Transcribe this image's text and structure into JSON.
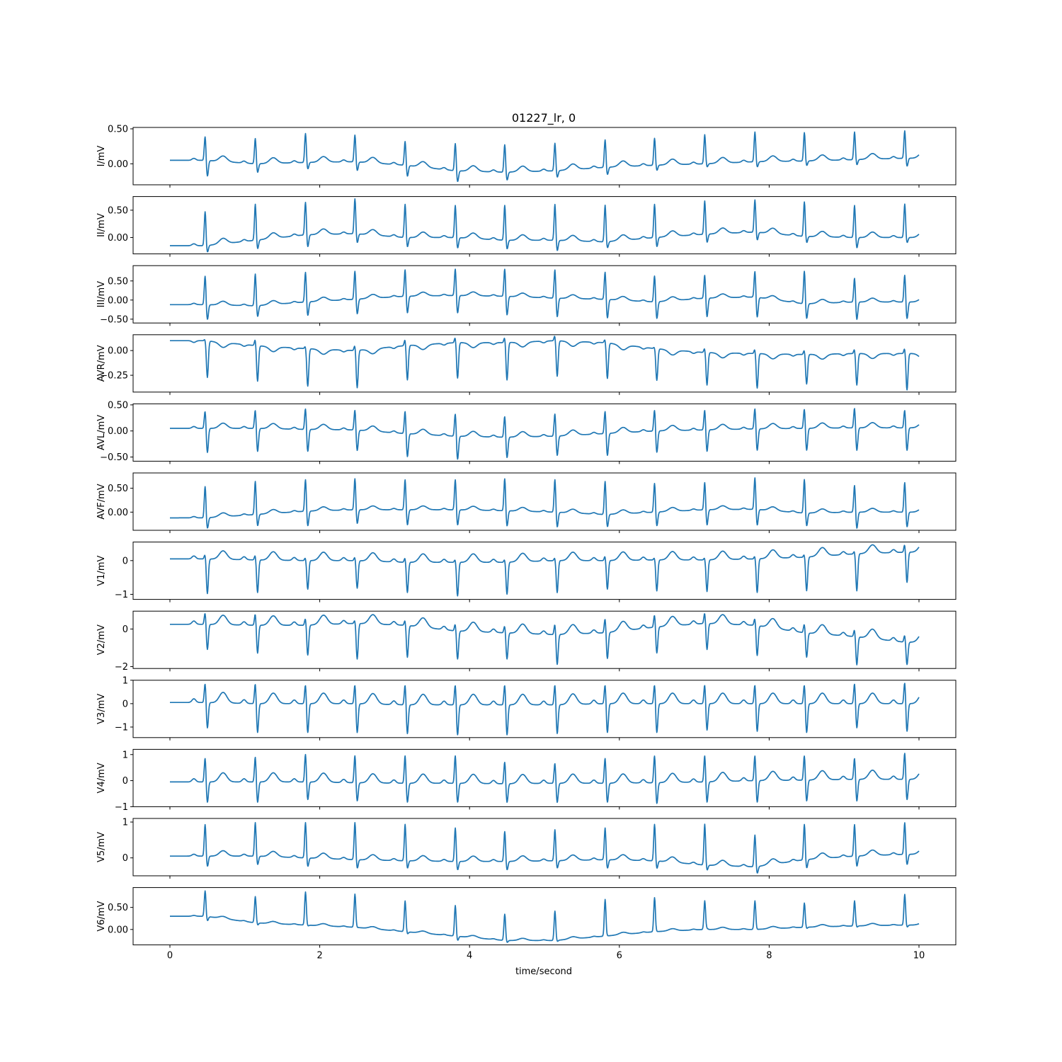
{
  "chart_data": {
    "type": "line",
    "title": "01227_lr,  0",
    "xlabel": "time/second",
    "xlim": [
      0,
      10
    ],
    "xticks": [
      0,
      2,
      4,
      6,
      8,
      10
    ],
    "grid": false,
    "line_color": "#1f77b4",
    "beats": [
      0.47,
      1.14,
      1.81,
      2.47,
      3.14,
      3.81,
      4.47,
      5.14,
      5.81,
      6.47,
      7.14,
      7.81,
      8.47,
      9.14,
      9.81
    ],
    "leads": [
      {
        "name": "I",
        "ylabel": "I/mV",
        "ylim": [
          -0.3,
          0.52
        ],
        "yticks": [
          0.5,
          0.0
        ],
        "baseline": [
          0.05,
          0.0,
          0.02,
          0.03,
          -0.02,
          -0.1,
          -0.12,
          -0.1,
          -0.05,
          -0.02,
          0.0,
          0.03,
          0.04,
          0.06,
          0.08
        ],
        "r": [
          0.4,
          0.37,
          0.44,
          0.42,
          0.33,
          0.3,
          0.28,
          0.3,
          0.35,
          0.37,
          0.42,
          0.46,
          0.45,
          0.46,
          0.48
        ],
        "s": [
          -0.18,
          -0.13,
          -0.08,
          -0.1,
          -0.18,
          -0.26,
          -0.24,
          -0.2,
          -0.16,
          -0.1,
          -0.05,
          -0.05,
          -0.03,
          -0.02,
          -0.04
        ],
        "t": 0.08
      },
      {
        "name": "II",
        "ylabel": "II/mV",
        "ylim": [
          -0.3,
          0.75
        ],
        "yticks": [
          0.5,
          0.0
        ],
        "baseline": [
          -0.15,
          -0.05,
          0.05,
          0.07,
          0.0,
          0.0,
          -0.05,
          -0.05,
          -0.08,
          0.0,
          0.06,
          0.1,
          0.02,
          0.0,
          0.0
        ],
        "r": [
          0.48,
          0.62,
          0.66,
          0.72,
          0.62,
          0.6,
          0.6,
          0.62,
          0.6,
          0.62,
          0.68,
          0.7,
          0.66,
          0.6,
          0.62
        ],
        "s": [
          -0.28,
          -0.22,
          -0.18,
          -0.1,
          -0.18,
          -0.2,
          -0.22,
          -0.25,
          -0.2,
          -0.18,
          -0.1,
          -0.05,
          -0.1,
          -0.2,
          -0.1
        ],
        "t": 0.1
      },
      {
        "name": "III",
        "ylabel": "III/mV",
        "ylim": [
          -0.6,
          0.9
        ],
        "yticks": [
          0.5,
          0.0,
          -0.5
        ],
        "baseline": [
          -0.12,
          -0.15,
          -0.05,
          0.02,
          0.1,
          0.12,
          0.1,
          0.05,
          0.02,
          -0.05,
          0.05,
          0.08,
          -0.1,
          -0.05,
          -0.05
        ],
        "r": [
          0.65,
          0.7,
          0.75,
          0.78,
          0.82,
          0.84,
          0.84,
          0.82,
          0.76,
          0.66,
          0.68,
          0.78,
          0.78,
          0.6,
          0.68
        ],
        "s": [
          -0.52,
          -0.45,
          -0.42,
          -0.38,
          -0.35,
          -0.35,
          -0.4,
          -0.45,
          -0.48,
          -0.5,
          -0.45,
          -0.45,
          -0.5,
          -0.52,
          -0.5
        ],
        "t": 0.1
      },
      {
        "name": "AVR",
        "ylabel": "AVR/mV",
        "ylim": [
          -0.42,
          0.16
        ],
        "yticks": [
          0.0,
          -0.25
        ],
        "baseline": [
          0.1,
          0.05,
          0.02,
          0.0,
          0.05,
          0.08,
          0.08,
          0.1,
          0.08,
          0.02,
          -0.02,
          -0.03,
          -0.04,
          -0.03,
          -0.03
        ],
        "r": [
          0.12,
          0.12,
          0.05,
          0.06,
          0.12,
          0.14,
          0.14,
          0.16,
          0.12,
          0.04,
          0.03,
          0.02,
          0.01,
          0.02,
          0.03
        ],
        "s": [
          -0.27,
          -0.31,
          -0.36,
          -0.38,
          -0.3,
          -0.28,
          -0.3,
          -0.26,
          -0.28,
          -0.3,
          -0.35,
          -0.38,
          -0.34,
          -0.35,
          -0.4
        ],
        "t": -0.05
      },
      {
        "name": "AVL",
        "ylabel": "AVL/mV",
        "ylim": [
          -0.58,
          0.52
        ],
        "yticks": [
          0.5,
          0.0,
          -0.5
        ],
        "baseline": [
          0.05,
          0.05,
          0.03,
          0.02,
          -0.05,
          -0.1,
          -0.12,
          -0.1,
          -0.05,
          0.0,
          0.02,
          0.04,
          0.05,
          0.06,
          0.06
        ],
        "r": [
          0.4,
          0.42,
          0.45,
          0.42,
          0.4,
          0.35,
          0.3,
          0.35,
          0.4,
          0.42,
          0.42,
          0.45,
          0.44,
          0.46,
          0.42
        ],
        "s": [
          -0.42,
          -0.4,
          -0.4,
          -0.38,
          -0.5,
          -0.55,
          -0.52,
          -0.48,
          -0.48,
          -0.42,
          -0.4,
          -0.38,
          -0.38,
          -0.38,
          -0.38
        ],
        "t": 0.1
      },
      {
        "name": "AVF",
        "ylabel": "AVF/mV",
        "ylim": [
          -0.38,
          0.82
        ],
        "yticks": [
          0.5,
          0.0
        ],
        "baseline": [
          -0.12,
          -0.05,
          0.02,
          0.05,
          0.05,
          0.05,
          0.03,
          0.0,
          -0.05,
          0.0,
          0.05,
          0.06,
          -0.02,
          0.0,
          0.0
        ],
        "r": [
          0.55,
          0.66,
          0.7,
          0.72,
          0.7,
          0.7,
          0.72,
          0.7,
          0.66,
          0.62,
          0.64,
          0.74,
          0.7,
          0.58,
          0.64
        ],
        "s": [
          -0.35,
          -0.3,
          -0.3,
          -0.25,
          -0.28,
          -0.28,
          -0.3,
          -0.32,
          -0.32,
          -0.3,
          -0.28,
          -0.28,
          -0.3,
          -0.35,
          -0.32
        ],
        "t": 0.08
      },
      {
        "name": "V1",
        "ylabel": "V1/mV",
        "ylim": [
          -1.15,
          0.55
        ],
        "yticks": [
          0,
          -1
        ],
        "baseline": [
          0.05,
          0.02,
          0.0,
          0.0,
          -0.05,
          -0.05,
          -0.05,
          0.0,
          0.0,
          0.02,
          0.02,
          0.05,
          0.1,
          0.2,
          0.25
        ],
        "r": [
          0.2,
          0.18,
          0.1,
          0.12,
          0.1,
          0.05,
          0.05,
          0.1,
          0.15,
          0.1,
          0.1,
          0.15,
          0.2,
          0.3,
          0.5
        ],
        "s": [
          -0.98,
          -0.95,
          -0.85,
          -0.82,
          -0.95,
          -1.05,
          -1.0,
          -0.95,
          -0.85,
          -0.9,
          -0.92,
          -0.95,
          -0.9,
          -0.9,
          -0.65
        ],
        "t": 0.25
      },
      {
        "name": "V2",
        "ylabel": "V2/mV",
        "ylim": [
          -2.1,
          0.95
        ],
        "yticks": [
          0,
          -2
        ],
        "baseline": [
          0.25,
          0.2,
          0.2,
          0.3,
          0.2,
          -0.1,
          -0.2,
          -0.3,
          -0.2,
          0.1,
          0.3,
          0.2,
          -0.2,
          -0.4,
          -0.7
        ],
        "r": [
          0.9,
          0.85,
          0.6,
          0.5,
          0.5,
          0.3,
          0.2,
          0.3,
          0.6,
          0.8,
          0.9,
          0.6,
          0.3,
          0.0,
          -0.3
        ],
        "s": [
          -1.1,
          -1.3,
          -1.4,
          -1.6,
          -1.5,
          -1.6,
          -1.6,
          -1.9,
          -1.6,
          -1.3,
          -1.1,
          -1.4,
          -1.5,
          -1.9,
          -1.9
        ],
        "t": 0.5
      },
      {
        "name": "V3",
        "ylabel": "V3/mV",
        "ylim": [
          -1.45,
          1.0
        ],
        "yticks": [
          1,
          0,
          -1
        ],
        "baseline": [
          0.05,
          0.0,
          0.0,
          0.0,
          -0.05,
          -0.05,
          -0.05,
          -0.05,
          0.0,
          0.0,
          0.0,
          0.0,
          0.0,
          0.0,
          0.0
        ],
        "r": [
          0.9,
          0.9,
          0.85,
          0.85,
          0.85,
          0.85,
          0.85,
          0.85,
          0.85,
          0.85,
          0.85,
          0.85,
          0.85,
          0.9,
          0.95
        ],
        "s": [
          -1.05,
          -1.25,
          -1.25,
          -1.25,
          -1.3,
          -1.35,
          -1.35,
          -1.3,
          -1.25,
          -1.25,
          -1.15,
          -1.2,
          -1.25,
          -1.05,
          -1.2
        ],
        "t": 0.45
      },
      {
        "name": "V4",
        "ylabel": "V4/mV",
        "ylim": [
          -1.0,
          1.2
        ],
        "yticks": [
          1,
          0,
          -1
        ],
        "baseline": [
          -0.05,
          -0.05,
          -0.05,
          -0.08,
          -0.1,
          -0.1,
          -0.12,
          -0.1,
          -0.1,
          -0.08,
          -0.05,
          0.0,
          0.02,
          0.05,
          0.05
        ],
        "r": [
          0.9,
          0.95,
          1.05,
          1.0,
          1.0,
          1.0,
          0.75,
          0.7,
          0.9,
          1.0,
          1.0,
          1.0,
          1.0,
          0.9,
          1.1
        ],
        "s": [
          -0.85,
          -0.85,
          -0.75,
          -0.8,
          -0.85,
          -0.85,
          -0.85,
          -0.85,
          -0.85,
          -0.9,
          -0.85,
          -0.85,
          -0.8,
          -0.8,
          -0.75
        ],
        "t": 0.35
      },
      {
        "name": "V5",
        "ylabel": "V5/mV",
        "ylim": [
          -0.5,
          1.1
        ],
        "yticks": [
          1,
          0
        ],
        "baseline": [
          0.05,
          0.05,
          0.0,
          -0.05,
          -0.08,
          -0.1,
          -0.1,
          -0.08,
          -0.05,
          -0.08,
          -0.2,
          -0.25,
          -0.05,
          0.05,
          0.1
        ],
        "r": [
          0.95,
          1.0,
          1.0,
          1.0,
          0.95,
          0.85,
          0.75,
          0.8,
          0.85,
          0.95,
          0.95,
          0.65,
          0.95,
          0.95,
          1.0
        ],
        "s": [
          -0.25,
          -0.2,
          -0.25,
          -0.3,
          -0.3,
          -0.35,
          -0.35,
          -0.3,
          -0.3,
          -0.3,
          -0.35,
          -0.45,
          -0.3,
          -0.25,
          -0.2
        ],
        "t": 0.15
      },
      {
        "name": "V6",
        "ylabel": "V6/mV",
        "ylim": [
          -0.35,
          0.95
        ],
        "yticks": [
          0.5,
          0.0
        ],
        "baseline": [
          0.3,
          0.15,
          0.1,
          0.05,
          -0.05,
          -0.15,
          -0.25,
          -0.25,
          -0.15,
          -0.05,
          0.0,
          0.0,
          0.05,
          0.08,
          0.1
        ],
        "r": [
          0.88,
          0.75,
          0.85,
          0.8,
          0.65,
          0.55,
          0.35,
          0.42,
          0.68,
          0.72,
          0.65,
          0.65,
          0.6,
          0.65,
          0.8
        ],
        "s": [
          0.2,
          0.1,
          0.08,
          0.05,
          -0.1,
          -0.25,
          -0.3,
          -0.28,
          -0.15,
          -0.05,
          0.02,
          0.0,
          0.02,
          0.05,
          0.05
        ],
        "t": 0.05
      }
    ]
  }
}
